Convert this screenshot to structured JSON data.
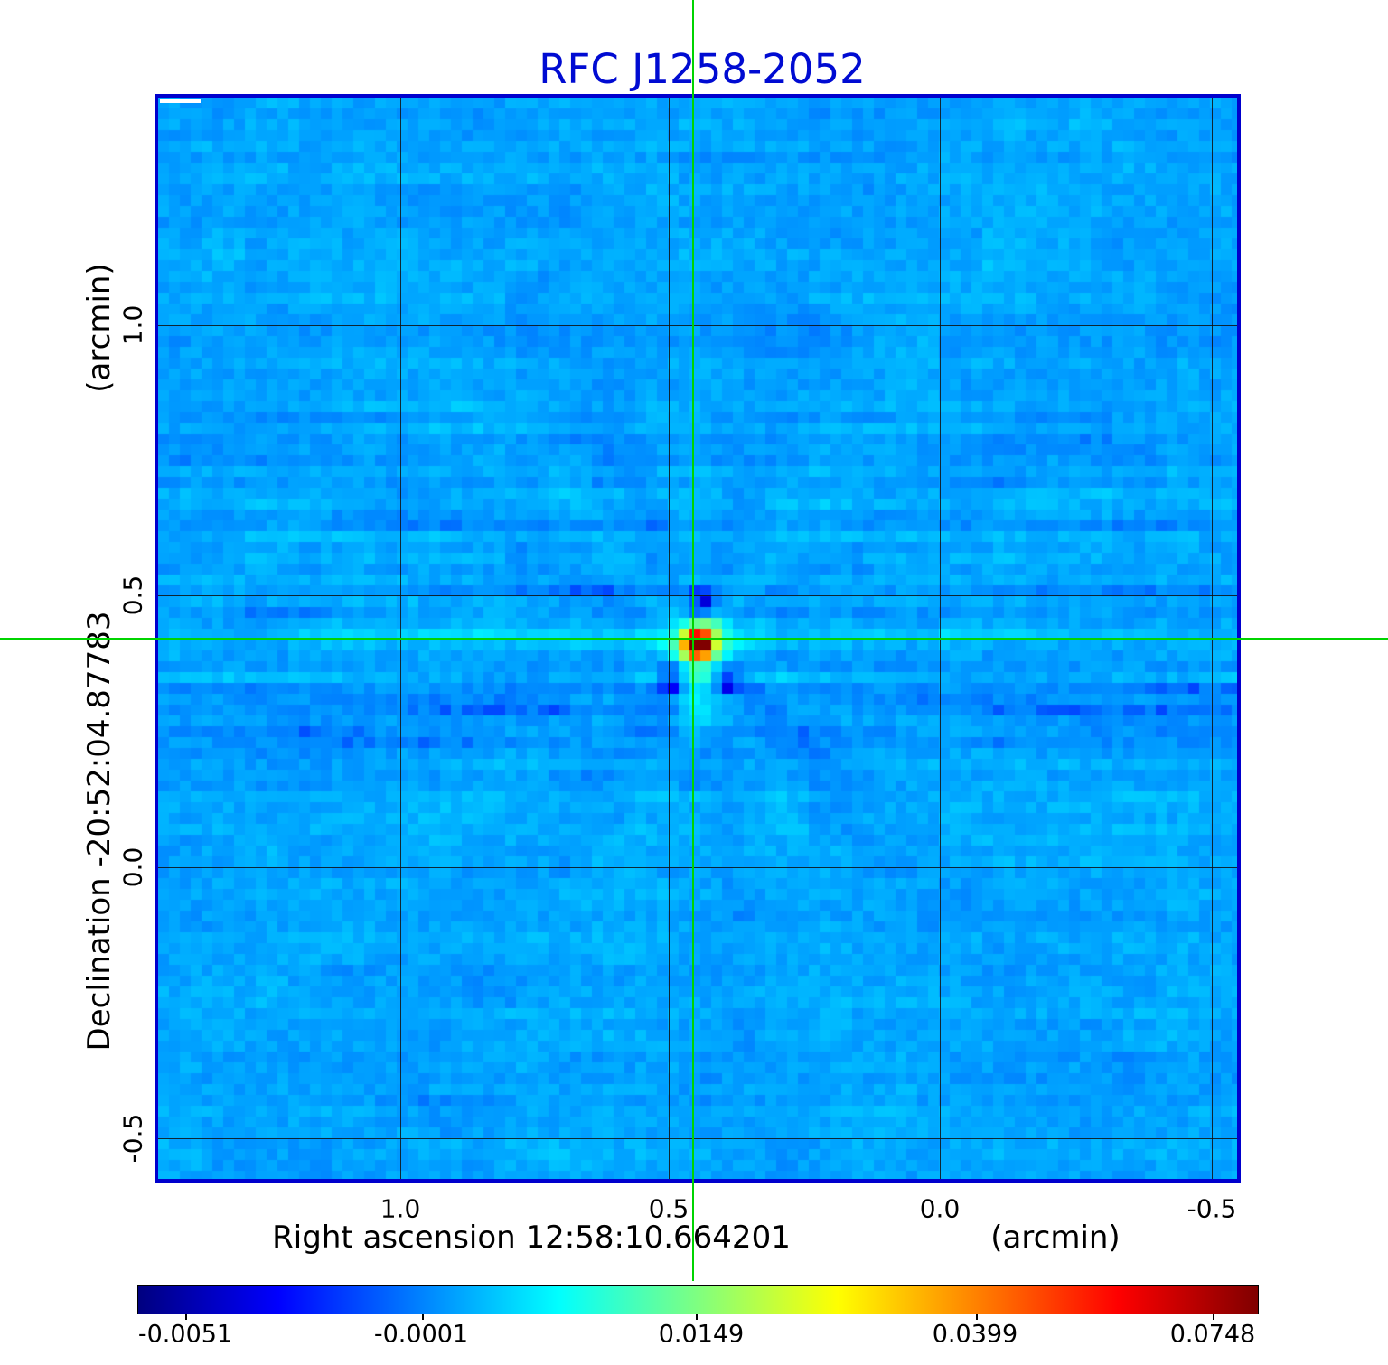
{
  "title": {
    "text": "RFC J1258-2052",
    "color": "#000bd2"
  },
  "axes": {
    "y": {
      "unit_label": "(arcmin)",
      "axis_label": "Declination  -20:52:04.87783",
      "ticks": [
        "1.0",
        "0.5",
        "0.0",
        "-0.5"
      ]
    },
    "x": {
      "axis_label": "Right ascension  12:58:10.664201",
      "unit_label": "(arcmin)",
      "ticks": [
        "1.0",
        "0.5",
        "0.0",
        "-0.5"
      ]
    }
  },
  "colorbar": {
    "tick_labels": [
      "-0.0051",
      "-0.0001",
      "0.0149",
      "0.0399",
      "0.0748"
    ],
    "colormap": "jet",
    "position": "bottom"
  },
  "crosshair": {
    "color": "#00d400"
  },
  "frame_color": "#0000cd",
  "chart_data": {
    "type": "heatmap",
    "title": "RFC J1258-2052",
    "xlabel": "Right ascension 12:58:10.664201 (arcmin)",
    "ylabel": "Declination -20:52:04.87783 (arcmin)",
    "x_ticks_arcmin": [
      1.0,
      0.5,
      0.0,
      -0.5
    ],
    "y_ticks_arcmin": [
      1.0,
      0.5,
      0.0,
      -0.5
    ],
    "x_range_arcmin": [
      1.45,
      -0.55
    ],
    "y_range_arcmin": [
      -0.58,
      1.42
    ],
    "grid": true,
    "colormap": "jet",
    "colorbar_ticks": [
      -0.0051,
      -0.0001,
      0.0149,
      0.0399,
      0.0748
    ],
    "peak_value": 0.0748,
    "background_level": 0.002,
    "source_position_arcmin": {
      "x": 0.45,
      "y": 0.42
    },
    "source_features": [
      "bright compact core (red/orange)",
      "negative sidelobe above core (dark blue)",
      "two negative sidelobes below core",
      "cyan plume extending south",
      "horizontal stripe artifacts through source row"
    ],
    "render": {
      "seed": 7,
      "block": 12,
      "base": 0.002,
      "noise_amp": 0.0022,
      "row_noise_amp": 0.0016,
      "coarse_amp": 0.001,
      "streak_amp": 0.0008,
      "row_glow": 0.0026,
      "tpos": [
        0.04,
        0.25,
        0.5,
        0.75,
        0.96
      ],
      "center_block": [
        49.33,
        49.92
      ],
      "components": [
        {
          "amp": 0.1,
          "dx": 0,
          "dy": 0,
          "sx": 0.7,
          "sy": 0.7
        },
        {
          "amp": 0.016,
          "dx": 0,
          "dy": 0,
          "sx": 1.4,
          "sy": 1.4
        },
        {
          "amp": 0.005,
          "dx": 0,
          "dy": 0,
          "sx": 2.6,
          "sy": 2.6
        },
        {
          "amp": -0.0095,
          "dx": 0.4,
          "dy": -3.6,
          "sx": 1.1,
          "sy": 1.1
        },
        {
          "amp": -0.0062,
          "dx": -2.4,
          "dy": 2.9,
          "sx": 1.05,
          "sy": 1.05
        },
        {
          "amp": -0.0062,
          "dx": 2.6,
          "dy": 3.0,
          "sx": 1.05,
          "sy": 1.05
        },
        {
          "amp": 0.0052,
          "dx": 0,
          "dy": 5.5,
          "sx": 0.95,
          "sy": 2.6,
          "gate": 1.5
        },
        {
          "amp": 0.004,
          "dx": 1.2,
          "dy": -1.6,
          "sx": 0.9,
          "sy": 0.9
        }
      ]
    }
  }
}
